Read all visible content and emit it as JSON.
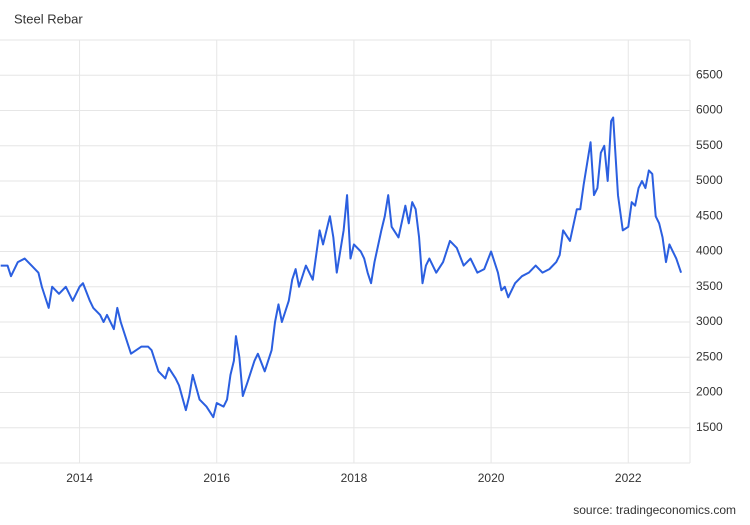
{
  "chart_data": {
    "type": "line",
    "title": "Steel Rebar",
    "source": "source: tradingeconomics.com",
    "color": "#2b5fe0",
    "x": [
      2012.85,
      2012.95,
      2013.0,
      2013.1,
      2013.2,
      2013.3,
      2013.4,
      2013.45,
      2013.55,
      2013.6,
      2013.7,
      2013.8,
      2013.9,
      2014.0,
      2014.05,
      2014.15,
      2014.2,
      2014.3,
      2014.35,
      2014.4,
      2014.5,
      2014.55,
      2014.6,
      2014.7,
      2014.75,
      2014.9,
      2015.0,
      2015.05,
      2015.15,
      2015.25,
      2015.3,
      2015.4,
      2015.45,
      2015.55,
      2015.6,
      2015.65,
      2015.75,
      2015.85,
      2015.95,
      2016.0,
      2016.1,
      2016.15,
      2016.2,
      2016.25,
      2016.28,
      2016.33,
      2016.38,
      2016.45,
      2016.55,
      2016.6,
      2016.7,
      2016.8,
      2016.85,
      2016.9,
      2016.95,
      2017.05,
      2017.1,
      2017.15,
      2017.2,
      2017.3,
      2017.4,
      2017.5,
      2017.55,
      2017.65,
      2017.7,
      2017.75,
      2017.85,
      2017.9,
      2017.95,
      2018.0,
      2018.1,
      2018.15,
      2018.2,
      2018.25,
      2018.3,
      2018.4,
      2018.45,
      2018.5,
      2018.55,
      2018.65,
      2018.75,
      2018.8,
      2018.85,
      2018.9,
      2018.95,
      2019.0,
      2019.05,
      2019.1,
      2019.2,
      2019.3,
      2019.4,
      2019.5,
      2019.6,
      2019.7,
      2019.8,
      2019.9,
      2020.0,
      2020.1,
      2020.15,
      2020.2,
      2020.25,
      2020.35,
      2020.45,
      2020.55,
      2020.65,
      2020.75,
      2020.85,
      2020.95,
      2021.0,
      2021.05,
      2021.15,
      2021.25,
      2021.3,
      2021.35,
      2021.4,
      2021.45,
      2021.5,
      2021.55,
      2021.6,
      2021.65,
      2021.7,
      2021.75,
      2021.78,
      2021.85,
      2021.92,
      2022.0,
      2022.05,
      2022.1,
      2022.15,
      2022.2,
      2022.25,
      2022.3,
      2022.35,
      2022.4,
      2022.45,
      2022.5,
      2022.55,
      2022.6,
      2022.65,
      2022.7,
      2022.77
    ],
    "values": [
      3800,
      3800,
      3650,
      3850,
      3900,
      3800,
      3700,
      3500,
      3200,
      3500,
      3400,
      3500,
      3300,
      3500,
      3550,
      3300,
      3200,
      3100,
      3000,
      3100,
      2900,
      3200,
      3000,
      2700,
      2550,
      2650,
      2650,
      2600,
      2300,
      2200,
      2350,
      2200,
      2100,
      1750,
      1950,
      2250,
      1900,
      1800,
      1650,
      1850,
      1800,
      1900,
      2250,
      2450,
      2800,
      2500,
      1950,
      2150,
      2450,
      2550,
      2300,
      2600,
      3000,
      3250,
      3000,
      3300,
      3600,
      3750,
      3500,
      3800,
      3600,
      4300,
      4100,
      4500,
      4200,
      3700,
      4300,
      4800,
      3900,
      4100,
      4000,
      3900,
      3700,
      3550,
      3850,
      4300,
      4500,
      4800,
      4350,
      4200,
      4650,
      4400,
      4700,
      4600,
      4200,
      3550,
      3800,
      3900,
      3700,
      3850,
      4150,
      4050,
      3800,
      3900,
      3700,
      3750,
      4000,
      3700,
      3450,
      3500,
      3350,
      3550,
      3650,
      3700,
      3800,
      3700,
      3750,
      3850,
      3950,
      4300,
      4150,
      4600,
      4600,
      4950,
      5250,
      5550,
      4800,
      4900,
      5400,
      5500,
      5000,
      5850,
      5900,
      4800,
      4300,
      4350,
      4700,
      4650,
      4900,
      5000,
      4900,
      5150,
      5100,
      4500,
      4400,
      4200,
      3850,
      4100,
      4000,
      3900,
      3700
    ],
    "xlim": [
      2012.84,
      2022.9
    ],
    "xticks": [
      2014,
      2016,
      2018,
      2020,
      2022
    ],
    "ylim": [
      1000,
      7000
    ],
    "yticks": [
      1500,
      2000,
      2500,
      3000,
      3500,
      4000,
      4500,
      5000,
      5500,
      6000,
      6500
    ],
    "grid": true
  }
}
